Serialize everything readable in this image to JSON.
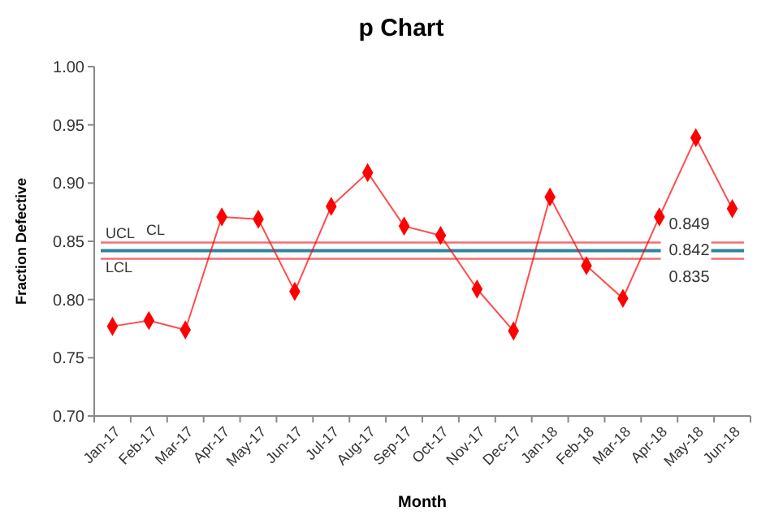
{
  "chart_data": {
    "type": "line",
    "title": "p Chart",
    "xlabel": "Month",
    "ylabel": "Fraction Defective",
    "categories": [
      "Jan-17",
      "Feb-17",
      "Mar-17",
      "Apr-17",
      "May-17",
      "Jun-17",
      "Jul-17",
      "Aug-17",
      "Sep-17",
      "Oct-17",
      "Nov-17",
      "Dec-17",
      "Jan-18",
      "Feb-18",
      "Mar-18",
      "Apr-18",
      "May-18",
      "Jun-18"
    ],
    "series": [
      {
        "color": "#ff0000",
        "values": [
          0.777,
          0.782,
          0.774,
          0.871,
          0.869,
          0.807,
          0.88,
          0.909,
          0.863,
          0.855,
          0.809,
          0.773,
          0.888,
          0.829,
          0.801,
          0.871,
          0.939,
          0.878
        ]
      }
    ],
    "marker": "diamond",
    "line_style": "solid",
    "grid": false,
    "ylim": [
      0.7,
      1.0
    ],
    "yticks": [
      {
        "value": 0.7,
        "label": "0.70"
      },
      {
        "value": 0.75,
        "label": "0.75"
      },
      {
        "value": 0.8,
        "label": "0.80"
      },
      {
        "value": 0.85,
        "label": "0.85"
      },
      {
        "value": 0.9,
        "label": "0.90"
      },
      {
        "value": 0.95,
        "label": "0.95"
      },
      {
        "value": 1.0,
        "label": "1.00"
      }
    ],
    "ref_lines": [
      {
        "axis": "y",
        "value": 0.849,
        "label": "UCL",
        "color": "#f07070"
      },
      {
        "axis": "y",
        "value": 0.842,
        "label": "CL",
        "color": "#31849b"
      },
      {
        "axis": "y",
        "value": 0.835,
        "label": "LCL",
        "color": "#f07070"
      }
    ],
    "annotations": [
      {
        "text": "0.849",
        "x": "Jun-18",
        "y": 0.849
      },
      {
        "text": "0.842",
        "x": "Jun-18",
        "y": 0.842
      },
      {
        "text": "0.835",
        "x": "Jun-18",
        "y": 0.835
      }
    ]
  }
}
